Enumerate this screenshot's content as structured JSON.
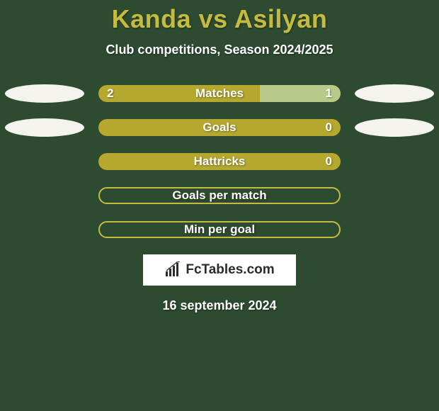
{
  "title": "Kanda vs Asilyan",
  "subtitle": "Club competitions, Season 2024/2025",
  "date": "16 september 2024",
  "brand": "FcTables.com",
  "colors": {
    "background": "#2d4b30",
    "title": "#c5bb3e",
    "text": "#ffffff",
    "ellipse": "#f5f3ed",
    "bar_base": "#b4a82f",
    "bar_accent_light": "#b9c98a",
    "bar_border": "#c5bb3e",
    "brand_bg": "#ffffff",
    "brand_text": "#2c2c2c"
  },
  "rows": [
    {
      "label": "Matches",
      "left_value": "2",
      "right_value": "1",
      "show_values": true,
      "show_ellipses": true,
      "left_fill_pct": 66.6,
      "left_fill_color": "#b4a82f",
      "right_fill_pct": 33.4,
      "right_fill_color": "#b9c98a",
      "bar_style": "split"
    },
    {
      "label": "Goals",
      "left_value": "",
      "right_value": "0",
      "show_values": true,
      "show_ellipses": true,
      "left_fill_pct": 100,
      "left_fill_color": "#b4a82f",
      "right_fill_pct": 0,
      "right_fill_color": "#b9c98a",
      "bar_style": "split"
    },
    {
      "label": "Hattricks",
      "left_value": "",
      "right_value": "0",
      "show_values": true,
      "show_ellipses": false,
      "left_fill_pct": 100,
      "left_fill_color": "#b4a82f",
      "right_fill_pct": 0,
      "right_fill_color": "#b9c98a",
      "bar_style": "split"
    },
    {
      "label": "Goals per match",
      "left_value": "",
      "right_value": "",
      "show_values": false,
      "show_ellipses": false,
      "bar_style": "outline"
    },
    {
      "label": "Min per goal",
      "left_value": "",
      "right_value": "",
      "show_values": false,
      "show_ellipses": false,
      "bar_style": "outline"
    }
  ]
}
